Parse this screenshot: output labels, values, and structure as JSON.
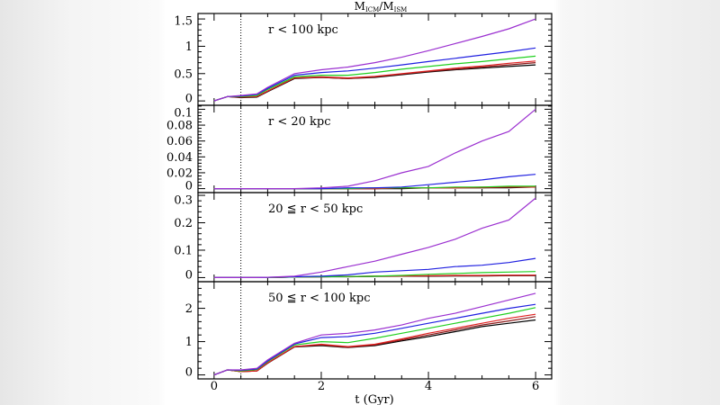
{
  "chart_data": {
    "type": "line",
    "title": "M_ICM/M_ISM",
    "title_main": "M",
    "title_sub1": "ICM",
    "title_sep": "/M",
    "title_sub2": "ISM",
    "xlabel": "t (Gyr)",
    "xlim": [
      -0.3,
      6.3
    ],
    "xticks": [
      0,
      2,
      4,
      6
    ],
    "reference_line_x": 0.5,
    "colors": [
      "#9b30d0",
      "#2020e0",
      "#20d020",
      "#e02020",
      "#8b1a1a",
      "#000000"
    ],
    "x": [
      0,
      0.25,
      0.5,
      0.8,
      1,
      1.5,
      2,
      2.5,
      3,
      3.5,
      4,
      4.5,
      5,
      5.5,
      6
    ],
    "panels": [
      {
        "label": "r < 100 kpc",
        "ylim": [
          -0.08,
          1.6
        ],
        "yticks": [
          0,
          0.5,
          1,
          1.5
        ],
        "ytick_labels": [
          "0",
          "0.5",
          "1",
          "1.5"
        ],
        "series": [
          [
            0,
            0.08,
            0.1,
            0.13,
            0.25,
            0.5,
            0.57,
            0.62,
            0.7,
            0.8,
            0.92,
            1.05,
            1.18,
            1.32,
            1.5
          ],
          [
            0,
            0.08,
            0.09,
            0.12,
            0.23,
            0.47,
            0.52,
            0.55,
            0.6,
            0.66,
            0.72,
            0.78,
            0.84,
            0.9,
            0.97
          ],
          [
            0,
            0.08,
            0.08,
            0.1,
            0.21,
            0.44,
            0.47,
            0.47,
            0.52,
            0.58,
            0.63,
            0.68,
            0.72,
            0.77,
            0.82
          ],
          [
            0,
            0.08,
            0.07,
            0.08,
            0.18,
            0.42,
            0.44,
            0.42,
            0.45,
            0.5,
            0.55,
            0.6,
            0.64,
            0.69,
            0.73
          ],
          [
            0,
            0.08,
            0.07,
            0.08,
            0.18,
            0.42,
            0.43,
            0.41,
            0.44,
            0.49,
            0.54,
            0.58,
            0.62,
            0.66,
            0.7
          ],
          [
            0,
            0.08,
            0.06,
            0.07,
            0.17,
            0.41,
            0.43,
            0.41,
            0.43,
            0.48,
            0.53,
            0.57,
            0.6,
            0.63,
            0.66
          ]
        ]
      },
      {
        "label": "r < 20 kpc",
        "ylim": [
          -0.005,
          0.105
        ],
        "yticks": [
          0,
          0.02,
          0.04,
          0.06,
          0.08,
          0.1
        ],
        "ytick_labels": [
          "0",
          "0.02",
          "0.04",
          "0.06",
          "0.08",
          "0.1"
        ],
        "series": [
          [
            0,
            0,
            0,
            0,
            0,
            0,
            0.001,
            0.003,
            0.01,
            0.02,
            0.028,
            0.045,
            0.06,
            0.072,
            0.1
          ],
          [
            0,
            0,
            0,
            0,
            0,
            0,
            0,
            0.001,
            0.001,
            0.002,
            0.005,
            0.008,
            0.011,
            0.015,
            0.018
          ],
          [
            0,
            0,
            0,
            0,
            0,
            0,
            0,
            0,
            0.001,
            0.001,
            0.001,
            0.002,
            0.002,
            0.003,
            0.003
          ],
          [
            0,
            0,
            0,
            0,
            0,
            0,
            0,
            0,
            0,
            0.001,
            0.001,
            0.001,
            0.002,
            0.002,
            0.002
          ],
          [
            0,
            0,
            0,
            0,
            0,
            0,
            0,
            0,
            0,
            0.001,
            0.001,
            0.001,
            0.001,
            0.002,
            0.002
          ],
          [
            0,
            0,
            0,
            0,
            0,
            0,
            0,
            0,
            0,
            0,
            0.001,
            0.001,
            0.001,
            0.001,
            0.002
          ]
        ]
      },
      {
        "label": "20 ≦ r < 50 kpc",
        "ylim": [
          -0.015,
          0.31
        ],
        "yticks": [
          0,
          0.1,
          0.2,
          0.3
        ],
        "ytick_labels": [
          "0",
          "0.1",
          "0.2",
          "0.3"
        ],
        "series": [
          [
            0,
            0,
            0,
            0,
            0.001,
            0.005,
            0.02,
            0.04,
            0.06,
            0.085,
            0.11,
            0.14,
            0.18,
            0.21,
            0.29
          ],
          [
            0,
            0,
            0,
            0,
            0.001,
            0.003,
            0.005,
            0.01,
            0.02,
            0.025,
            0.03,
            0.04,
            0.045,
            0.055,
            0.07
          ],
          [
            0,
            0,
            0,
            0,
            0,
            0.002,
            0.003,
            0.004,
            0.005,
            0.008,
            0.012,
            0.015,
            0.018,
            0.02,
            0.022
          ],
          [
            0,
            0,
            0,
            0,
            0,
            0.002,
            0.003,
            0.004,
            0.005,
            0.006,
            0.007,
            0.008,
            0.008,
            0.009,
            0.009
          ],
          [
            0,
            0,
            0,
            0,
            0,
            0.002,
            0.003,
            0.004,
            0.005,
            0.006,
            0.006,
            0.007,
            0.007,
            0.008,
            0.008
          ],
          [
            0,
            0,
            0,
            0,
            0,
            0.002,
            0.003,
            0.003,
            0.004,
            0.005,
            0.005,
            0.006,
            0.006,
            0.007,
            0.007
          ]
        ]
      },
      {
        "label": "50 ≦ r < 100 kpc",
        "ylim": [
          -0.12,
          2.8
        ],
        "yticks": [
          0,
          1,
          2
        ],
        "ytick_labels": [
          "0",
          "1",
          "2"
        ],
        "series": [
          [
            0,
            0.15,
            0.15,
            0.2,
            0.45,
            0.95,
            1.2,
            1.25,
            1.35,
            1.5,
            1.7,
            1.85,
            2.05,
            2.25,
            2.45
          ],
          [
            0,
            0.15,
            0.14,
            0.18,
            0.42,
            0.93,
            1.12,
            1.15,
            1.25,
            1.4,
            1.55,
            1.7,
            1.85,
            2.0,
            2.12
          ],
          [
            0,
            0.15,
            0.12,
            0.16,
            0.4,
            0.9,
            1.0,
            0.97,
            1.1,
            1.25,
            1.4,
            1.55,
            1.7,
            1.85,
            2.02
          ],
          [
            0,
            0.15,
            0.1,
            0.12,
            0.36,
            0.85,
            0.92,
            0.85,
            0.92,
            1.08,
            1.25,
            1.4,
            1.55,
            1.7,
            1.82
          ],
          [
            0,
            0.15,
            0.1,
            0.12,
            0.36,
            0.85,
            0.9,
            0.83,
            0.9,
            1.05,
            1.2,
            1.35,
            1.5,
            1.62,
            1.75
          ],
          [
            0,
            0.15,
            0.1,
            0.12,
            0.35,
            0.84,
            0.88,
            0.82,
            0.88,
            1.02,
            1.15,
            1.3,
            1.45,
            1.55,
            1.65
          ]
        ]
      }
    ]
  }
}
